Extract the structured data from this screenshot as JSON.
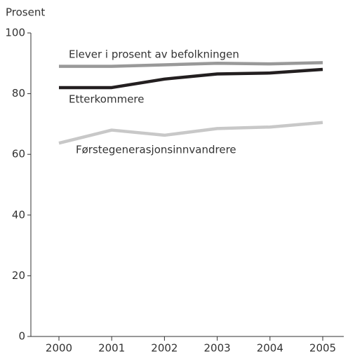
{
  "chart_data": {
    "type": "line",
    "y_axis_label": "Prosent",
    "categories": [
      "2000",
      "2001",
      "2002",
      "2003",
      "2004",
      "2005"
    ],
    "series": [
      {
        "name": "Elever i prosent av befolkningen",
        "color": "#999999",
        "values": [
          89,
          89,
          89.5,
          90,
          89.8,
          90.2
        ]
      },
      {
        "name": "Etterkommere",
        "color": "#231f20",
        "values": [
          82,
          82,
          84.8,
          86.5,
          86.8,
          88
        ]
      },
      {
        "name": "Førstegenerasjonsinnvandrere",
        "color": "#c8c8c8",
        "values": [
          63.7,
          68,
          66.3,
          68.5,
          69,
          70.5
        ]
      }
    ],
    "ylim": [
      0,
      100
    ],
    "yticks": [
      0,
      20,
      40,
      60,
      80,
      100
    ],
    "grid": false
  }
}
